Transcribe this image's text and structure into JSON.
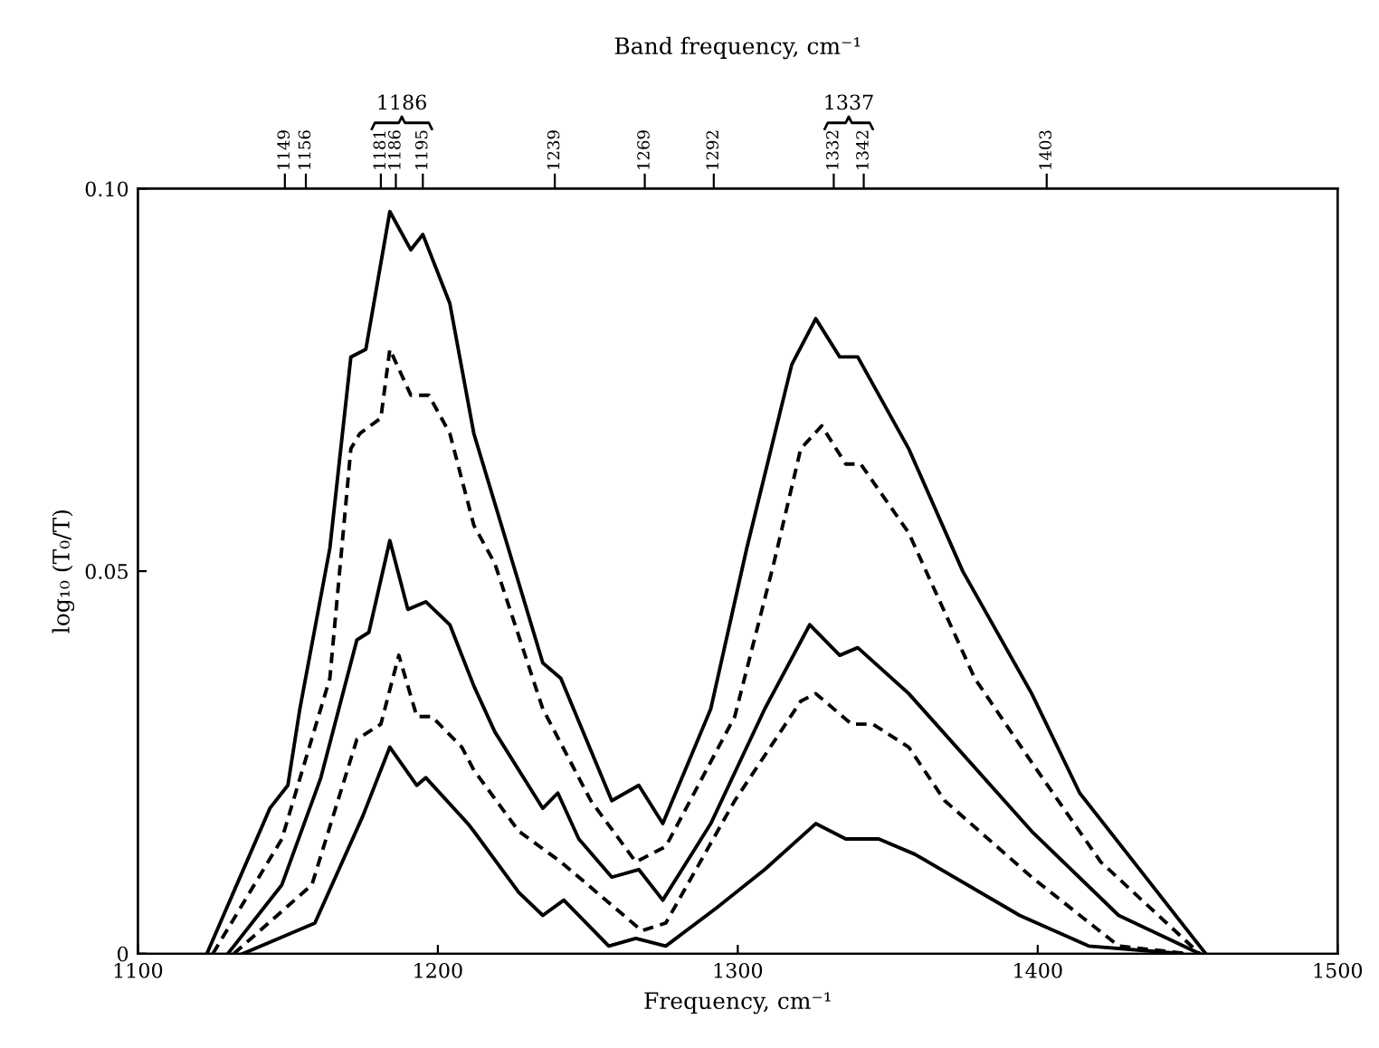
{
  "chart_data": {
    "type": "line",
    "x2label": "Band frequency, cm⁻¹",
    "xlabel": "Frequency, cm⁻¹",
    "ylabel": "log₁₀ (T₀/T)",
    "x2lim": [
      1100,
      1500
    ],
    "x2ticks": [
      1149,
      1156,
      1181,
      1186,
      1195,
      1239,
      1269,
      1292,
      1332,
      1342,
      1403
    ],
    "xlim": [
      1100,
      1500
    ],
    "xticks": [
      1100,
      1200,
      1300,
      1400,
      1500
    ],
    "ylim": [
      0,
      0.1
    ],
    "yticks": [
      0,
      0.05,
      {
        "value": 0.1,
        "label": "0.10"
      }
    ],
    "annotations": [
      "1186",
      "1337"
    ],
    "grid": false,
    "legend": false,
    "marker": "none",
    "series": [
      {
        "color": "#000000",
        "line_style": "solid",
        "x": [
          1123,
          1144,
          1150,
          1154,
          1164,
          1171,
          1176,
          1184,
          1191,
          1195,
          1204,
          1212,
          1235,
          1241,
          1258,
          1267,
          1275,
          1291,
          1303,
          1318,
          1326,
          1334,
          1340,
          1357,
          1375,
          1398,
          1414,
          1456
        ],
        "values": [
          0,
          0.019,
          0.022,
          0.032,
          0.053,
          0.078,
          0.079,
          0.097,
          0.092,
          0.094,
          0.085,
          0.068,
          0.038,
          0.036,
          0.02,
          0.022,
          0.017,
          0.032,
          0.053,
          0.077,
          0.083,
          0.078,
          0.078,
          0.066,
          0.05,
          0.034,
          0.021,
          0
        ]
      },
      {
        "color": "#000000",
        "line_style": "dashed",
        "x": [
          1125,
          1148,
          1164,
          1171,
          1174,
          1181,
          1184,
          1191,
          1197,
          1204,
          1212,
          1219,
          1235,
          1251,
          1266,
          1276,
          1299,
          1312,
          1321,
          1328,
          1336,
          1341,
          1357,
          1379,
          1398,
          1421,
          1454
        ],
        "values": [
          0,
          0.015,
          0.036,
          0.066,
          0.068,
          0.07,
          0.079,
          0.073,
          0.073,
          0.068,
          0.056,
          0.051,
          0.032,
          0.02,
          0.012,
          0.014,
          0.031,
          0.051,
          0.066,
          0.069,
          0.064,
          0.064,
          0.055,
          0.036,
          0.025,
          0.012,
          0
        ]
      },
      {
        "color": "#000000",
        "line_style": "solid",
        "x": [
          1130,
          1148,
          1161,
          1173,
          1177,
          1184,
          1190,
          1196,
          1204,
          1212,
          1219,
          1235,
          1240,
          1247,
          1258,
          1267,
          1275,
          1291,
          1309,
          1324,
          1334,
          1340,
          1357,
          1398,
          1427,
          1454
        ],
        "values": [
          0,
          0.009,
          0.023,
          0.041,
          0.042,
          0.054,
          0.045,
          0.046,
          0.043,
          0.035,
          0.029,
          0.019,
          0.021,
          0.015,
          0.01,
          0.011,
          0.007,
          0.017,
          0.032,
          0.043,
          0.039,
          0.04,
          0.034,
          0.016,
          0.005,
          0
        ]
      },
      {
        "color": "#000000",
        "line_style": "dashed",
        "x": [
          1132,
          1158,
          1173,
          1181,
          1187,
          1193,
          1198,
          1208,
          1212,
          1227,
          1241,
          1268,
          1276,
          1299,
          1321,
          1326,
          1338,
          1345,
          1357,
          1369,
          1398,
          1427,
          1450
        ],
        "values": [
          0,
          0.009,
          0.028,
          0.03,
          0.039,
          0.031,
          0.031,
          0.027,
          0.024,
          0.016,
          0.012,
          0.003,
          0.004,
          0.02,
          0.033,
          0.034,
          0.03,
          0.03,
          0.027,
          0.02,
          0.01,
          0.001,
          0
        ]
      },
      {
        "color": "#000000",
        "line_style": "solid",
        "x": [
          1135,
          1159,
          1175,
          1184,
          1193,
          1196,
          1210,
          1212,
          1227,
          1235,
          1242,
          1257,
          1266,
          1276,
          1293,
          1309,
          1326,
          1336,
          1347,
          1359,
          1394,
          1417,
          1448
        ],
        "values": [
          0,
          0.004,
          0.018,
          0.027,
          0.022,
          0.023,
          0.017,
          0.016,
          0.008,
          0.005,
          0.007,
          0.001,
          0.002,
          0.001,
          0.006,
          0.011,
          0.017,
          0.015,
          0.015,
          0.013,
          0.005,
          0.001,
          0
        ]
      }
    ]
  }
}
